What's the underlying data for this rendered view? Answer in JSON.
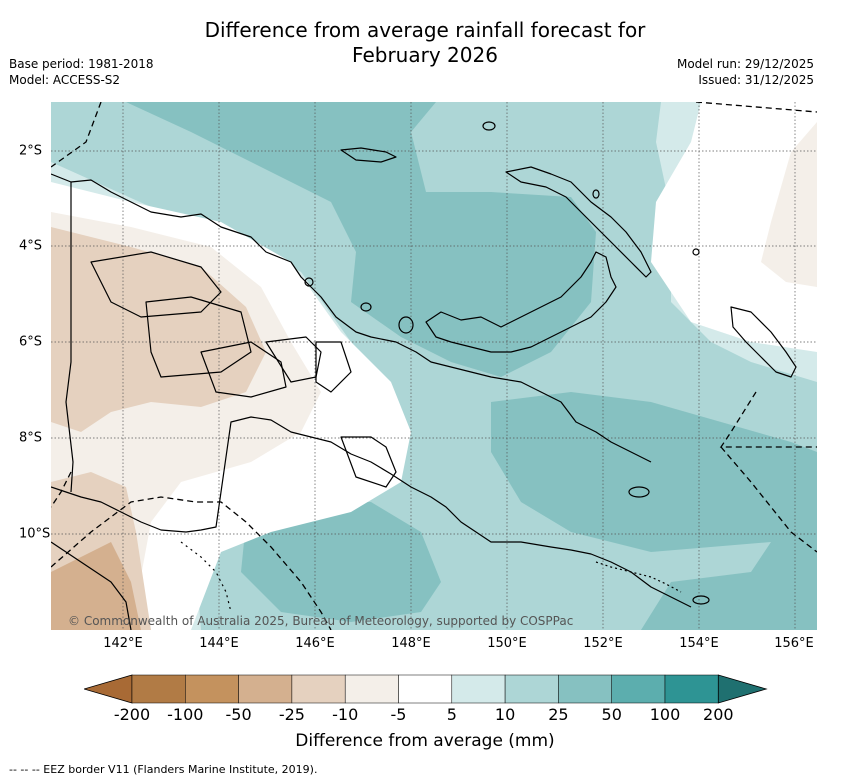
{
  "title_line1": "Difference from average rainfall forecast for",
  "title_line2": "February 2026",
  "base_period": "Base period: 1981-2018",
  "model": "Model: ACCESS-S2",
  "model_run": "Model run: 29/12/2025",
  "issued": "Issued: 31/12/2025",
  "copyright": "© Commonwealth of Australia 2025, Bureau of Meteorology, supported by COSPPac",
  "lon_ticks": [
    "142°E",
    "144°E",
    "146°E",
    "148°E",
    "150°E",
    "152°E",
    "154°E",
    "156°E"
  ],
  "lat_ticks": [
    "2°S",
    "4°S",
    "6°S",
    "8°S",
    "10°S"
  ],
  "colorbar": {
    "labels": [
      "-200",
      "-100",
      "-50",
      "-25",
      "-10",
      "-5",
      "5",
      "10",
      "25",
      "50",
      "100",
      "200"
    ],
    "colors": [
      "#a86a35",
      "#b17b45",
      "#c4925e",
      "#d4b08f",
      "#e5d1bf",
      "#f4efe9",
      "#ffffff",
      "#d4eaea",
      "#add6d6",
      "#86c1c1",
      "#5caeae",
      "#2e9494",
      "#1f7070"
    ],
    "title": "Difference from average (mm)"
  },
  "legend_text": "-- -- -- EEZ border V11 (Flanders Marine Institute, 2019).",
  "colors": {
    "land_outline": "#000000",
    "grid": "#555555"
  }
}
